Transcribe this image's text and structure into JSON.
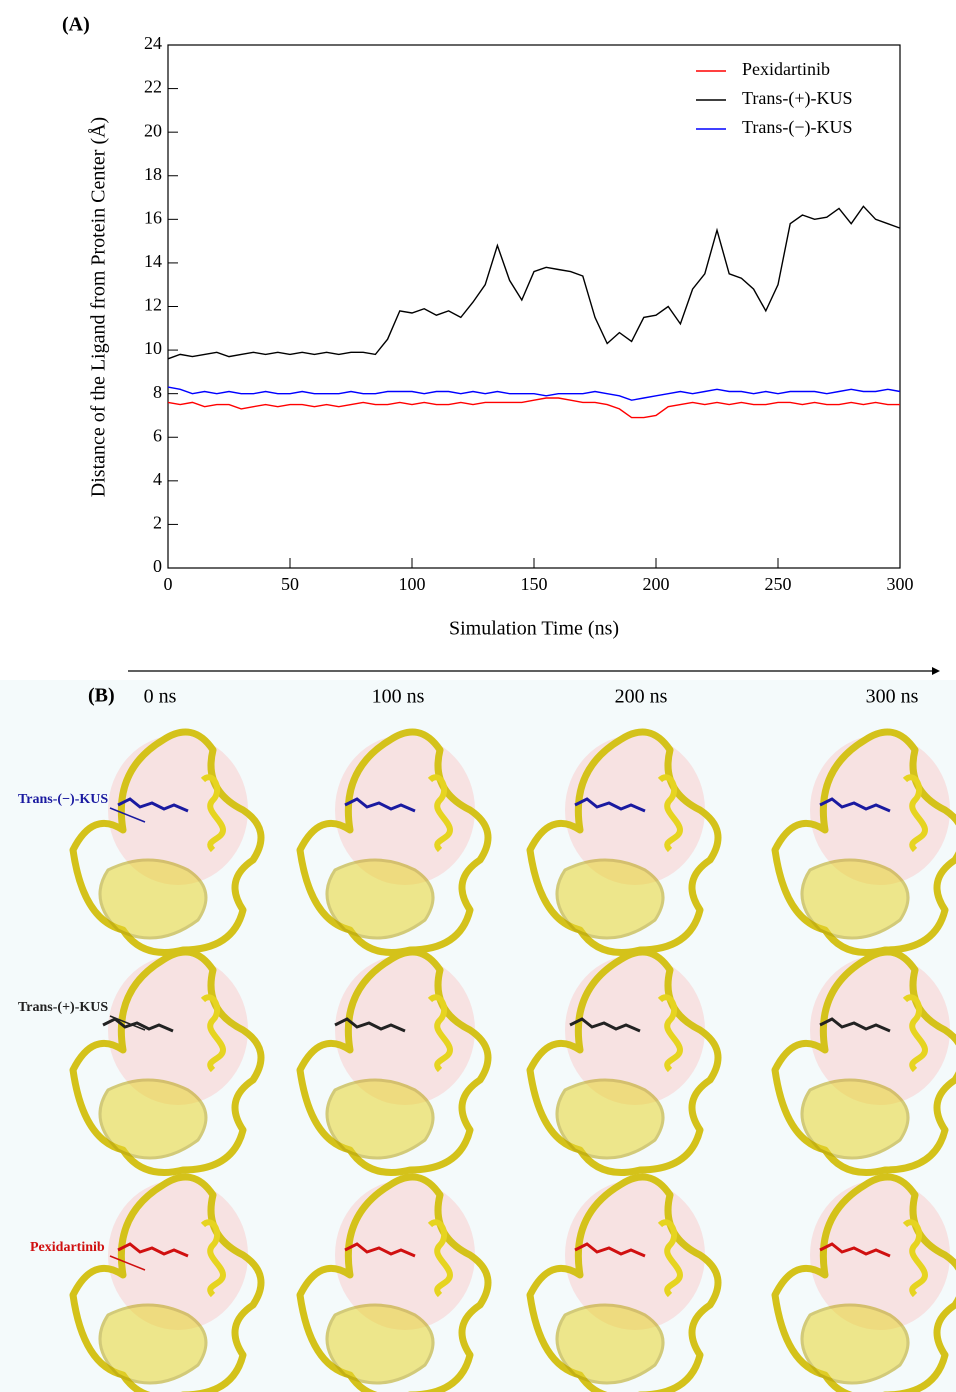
{
  "chart_data": {
    "type": "line",
    "panel_label": "(A)",
    "x_label": "Simulation Time (ns)",
    "y_label": "Distance of the Ligand from Protein Center (Å)",
    "x": [
      0,
      5,
      10,
      15,
      20,
      25,
      30,
      35,
      40,
      45,
      50,
      55,
      60,
      65,
      70,
      75,
      80,
      85,
      90,
      95,
      100,
      105,
      110,
      115,
      120,
      125,
      130,
      135,
      140,
      145,
      150,
      155,
      160,
      165,
      170,
      175,
      180,
      185,
      190,
      195,
      200,
      205,
      210,
      215,
      220,
      225,
      230,
      235,
      240,
      245,
      250,
      255,
      260,
      265,
      270,
      275,
      280,
      285,
      290,
      295,
      300
    ],
    "series": [
      {
        "name": "Pexidartinib",
        "color": "#ff0000",
        "values": [
          7.6,
          7.5,
          7.6,
          7.4,
          7.5,
          7.5,
          7.3,
          7.4,
          7.5,
          7.4,
          7.5,
          7.5,
          7.4,
          7.5,
          7.4,
          7.5,
          7.6,
          7.5,
          7.5,
          7.6,
          7.5,
          7.6,
          7.5,
          7.5,
          7.6,
          7.5,
          7.6,
          7.6,
          7.6,
          7.6,
          7.7,
          7.8,
          7.8,
          7.7,
          7.6,
          7.6,
          7.5,
          7.3,
          6.9,
          6.9,
          7.0,
          7.4,
          7.5,
          7.6,
          7.5,
          7.6,
          7.5,
          7.6,
          7.5,
          7.5,
          7.6,
          7.6,
          7.5,
          7.6,
          7.5,
          7.5,
          7.6,
          7.5,
          7.6,
          7.5,
          7.5
        ]
      },
      {
        "name": "Trans-(+)-KUS",
        "color": "#000000",
        "values": [
          9.6,
          9.8,
          9.7,
          9.8,
          9.9,
          9.7,
          9.8,
          9.9,
          9.8,
          9.9,
          9.8,
          9.9,
          9.8,
          9.9,
          9.8,
          9.9,
          9.9,
          9.8,
          10.5,
          11.8,
          11.7,
          11.9,
          11.6,
          11.8,
          11.5,
          12.2,
          13.0,
          14.8,
          13.2,
          12.3,
          13.6,
          13.8,
          13.7,
          13.6,
          13.4,
          11.5,
          10.3,
          10.8,
          10.4,
          11.5,
          11.6,
          12.0,
          11.2,
          12.8,
          13.5,
          15.5,
          13.5,
          13.3,
          12.8,
          11.8,
          13.0,
          15.8,
          16.2,
          16.0,
          16.1,
          16.5,
          15.8,
          16.6,
          16.0,
          15.8,
          15.6
        ]
      },
      {
        "name": "Trans-(−)-KUS",
        "color": "#0000ff",
        "values": [
          8.3,
          8.2,
          8.0,
          8.1,
          8.0,
          8.1,
          8.0,
          8.0,
          8.1,
          8.0,
          8.0,
          8.1,
          8.0,
          8.0,
          8.0,
          8.1,
          8.0,
          8.0,
          8.1,
          8.1,
          8.1,
          8.0,
          8.1,
          8.1,
          8.0,
          8.1,
          8.0,
          8.1,
          8.0,
          8.0,
          8.0,
          7.9,
          8.0,
          8.0,
          8.0,
          8.1,
          8.0,
          7.9,
          7.7,
          7.8,
          7.9,
          8.0,
          8.1,
          8.0,
          8.1,
          8.2,
          8.1,
          8.1,
          8.0,
          8.1,
          8.0,
          8.1,
          8.1,
          8.1,
          8.0,
          8.1,
          8.2,
          8.1,
          8.1,
          8.2,
          8.1
        ]
      }
    ],
    "xlim": [
      0,
      300
    ],
    "xticks": [
      0,
      50,
      100,
      150,
      200,
      250,
      300
    ],
    "ylim": [
      0,
      24
    ],
    "yticks": [
      0,
      2,
      4,
      6,
      8,
      10,
      12,
      14,
      16,
      18,
      20,
      22,
      24
    ],
    "grid": false,
    "legend": "upper right"
  },
  "panel_b": {
    "label": "(B)",
    "timepoints": [
      "0 ns",
      "100 ns",
      "200 ns",
      "300 ns"
    ],
    "ligands": [
      "Trans-(−)-KUS",
      "Trans-(+)-KUS",
      "Pexidartinib"
    ]
  }
}
